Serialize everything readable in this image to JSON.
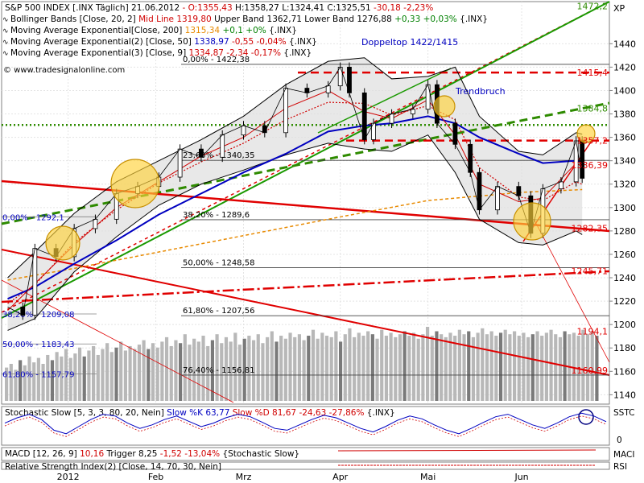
{
  "chart_data": {
    "type": "line",
    "header": {
      "symbol": "S&P 500 INDEX [.INX Täglich]",
      "date": "21.06.2012",
      "open": "O:1355,43",
      "high": "H:1358,27",
      "low": "L:1324,41",
      "close": "C:1325,51",
      "change": "-30,18 -2,23%"
    },
    "legend": [
      {
        "name": "Bollinger Bands [Close, 20, 2]",
        "extra": [
          {
            "text": "Mid Line 1319,80",
            "color": "#d00000"
          },
          {
            "text": "Upper Band 1362,71 Lower Band 1276,88",
            "color": "#000000"
          },
          {
            "text": "+0,33 +0,03%",
            "color": "#008000"
          },
          {
            "text": "{.INX}",
            "color": "#000000"
          }
        ]
      },
      {
        "name": "Moving Average Exponential[Close, 200]",
        "extra": [
          {
            "text": "1315,34",
            "color": "#e88a00"
          },
          {
            "text": "+0,1 +0%",
            "color": "#008000"
          },
          {
            "text": "{.INX}",
            "color": "#000000"
          }
        ]
      },
      {
        "name": "Moving Average Exponential(2) [Close, 50]",
        "extra": [
          {
            "text": "1338,97",
            "color": "#0000c0"
          },
          {
            "text": "-0,55 -0,04%",
            "color": "#d00000"
          },
          {
            "text": "{.INX}",
            "color": "#000000"
          }
        ]
      },
      {
        "name": "Moving Average Exponential(3) [Close, 9]",
        "extra": [
          {
            "text": "1334,87",
            "color": "#d00000"
          },
          {
            "text": "-2,34 -0,17%",
            "color": "#d00000"
          },
          {
            "text": "{.INX}",
            "color": "#000000"
          }
        ]
      }
    ],
    "watermark": "© www.tradesignalonline.com",
    "y_ticks": [
      1140,
      1160,
      1180,
      1200,
      1220,
      1240,
      1260,
      1280,
      1300,
      1320,
      1340,
      1360,
      1380,
      1400,
      1420,
      1440
    ],
    "ylim": [
      1132,
      1476
    ],
    "x_axis": [
      {
        "label": "2012",
        "date": "2012-01-03"
      },
      {
        "label": "Feb",
        "date": "2012-02-01"
      },
      {
        "label": "Mrz",
        "date": "2012-03-01"
      },
      {
        "label": "Apr",
        "date": "2012-04-02"
      },
      {
        "label": "Mai",
        "date": "2012-05-01"
      },
      {
        "label": "Jun",
        "date": "2012-06-01"
      }
    ],
    "xlim": [
      "2011-12-12",
      "2012-06-30"
    ],
    "yaxis_symbol": "XP",
    "annotations": {
      "doppeltop": "Doppeltop 1422/1415",
      "trendbruch": "Trendbruch"
    },
    "fib_levels": [
      {
        "label": "0,00% - 1422,38",
        "value": 1422.38
      },
      {
        "label": "23,60% - 1340,35",
        "value": 1340.35
      },
      {
        "label": "38,20% - 1289,6",
        "value": 1289.6
      },
      {
        "label": "50,00% - 1248,58",
        "value": 1248.58
      },
      {
        "label": "61,80% - 1207,56",
        "value": 1207.56
      },
      {
        "label": "76,40% - 1156,81",
        "value": 1156.81
      }
    ],
    "left_fib_levels": [
      {
        "label": "0,00% - 1292,1",
        "value": 1292.1
      },
      {
        "label": "38,20% - 1209,08",
        "value": 1209.08
      },
      {
        "label": "50,00% - 1183,43",
        "value": 1183.43
      },
      {
        "label": "61,80% - 1157,79",
        "value": 1157.79
      }
    ],
    "horizontal_lines": [
      {
        "label": "1415,4",
        "value": 1415.4,
        "color": "#e00000",
        "style": "dashed"
      },
      {
        "label": "1370,58",
        "value": 1370.58,
        "color": "#2e8b00",
        "style": "dotted"
      },
      {
        "label": "1357,2",
        "value": 1357.2,
        "color": "#e00000",
        "style": "dashed"
      }
    ],
    "right_labels": [
      {
        "text": "1472,2",
        "value": 1472.2,
        "color": "#2e8b00"
      },
      {
        "text": "1415,4",
        "value": 1415.4,
        "color": "#e00000"
      },
      {
        "text": "1384,8",
        "value": 1384.8,
        "color": "#2e8b00"
      },
      {
        "text": "1357,2",
        "value": 1357.2,
        "color": "#e00000"
      },
      {
        "text": "1336,39",
        "value": 1336.39,
        "color": "#e00000"
      },
      {
        "text": "1282,35",
        "value": 1282.35,
        "color": "#e00000"
      },
      {
        "text": "1245,71",
        "value": 1245.71,
        "color": "#e00000"
      },
      {
        "text": "1194,1",
        "value": 1194.1,
        "color": "#e00000"
      },
      {
        "text": "1160,99",
        "value": 1160.99,
        "color": "#e00000"
      }
    ],
    "series": [
      {
        "name": "Close",
        "color": "#000000",
        "x": [
          "2011-12-14",
          "2011-12-19",
          "2011-12-23",
          "2011-12-30",
          "2012-01-05",
          "2012-01-12",
          "2012-01-19",
          "2012-01-26",
          "2012-02-02",
          "2012-02-09",
          "2012-02-16",
          "2012-02-23",
          "2012-03-01",
          "2012-03-08",
          "2012-03-15",
          "2012-03-22",
          "2012-03-29",
          "2012-04-02",
          "2012-04-05",
          "2012-04-10",
          "2012-04-13",
          "2012-04-19",
          "2012-04-26",
          "2012-05-01",
          "2012-05-04",
          "2012-05-10",
          "2012-05-15",
          "2012-05-18",
          "2012-05-24",
          "2012-05-31",
          "2012-06-04",
          "2012-06-08",
          "2012-06-14",
          "2012-06-19",
          "2012-06-21"
        ],
        "values": [
          1215,
          1208,
          1265,
          1258,
          1282,
          1290,
          1312,
          1318,
          1326,
          1350,
          1343,
          1362,
          1370,
          1364,
          1402,
          1398,
          1404,
          1420,
          1398,
          1358,
          1372,
          1380,
          1384,
          1405,
          1372,
          1354,
          1330,
          1298,
          1318,
          1310,
          1278,
          1316,
          1322,
          1357,
          1325
        ]
      },
      {
        "name": "Bollinger Upper",
        "color": "#000000",
        "x": [
          "2011-12-14",
          "2011-12-23",
          "2012-01-05",
          "2012-01-19",
          "2012-02-02",
          "2012-02-16",
          "2012-03-01",
          "2012-03-15",
          "2012-03-29",
          "2012-04-10",
          "2012-04-19",
          "2012-05-01",
          "2012-05-10",
          "2012-05-18",
          "2012-05-31",
          "2012-06-08",
          "2012-06-19",
          "2012-06-21"
        ],
        "values": [
          1240,
          1262,
          1295,
          1322,
          1340,
          1358,
          1378,
          1405,
          1425,
          1428,
          1410,
          1412,
          1420,
          1378,
          1348,
          1345,
          1364,
          1362.71
        ]
      },
      {
        "name": "Bollinger Lower",
        "color": "#000000",
        "x": [
          "2011-12-14",
          "2011-12-23",
          "2012-01-05",
          "2012-01-19",
          "2012-02-02",
          "2012-02-16",
          "2012-03-01",
          "2012-03-15",
          "2012-03-29",
          "2012-04-10",
          "2012-04-19",
          "2012-05-01",
          "2012-05-10",
          "2012-05-18",
          "2012-05-31",
          "2012-06-08",
          "2012-06-19",
          "2012-06-21"
        ],
        "values": [
          1195,
          1205,
          1245,
          1275,
          1302,
          1320,
          1332,
          1345,
          1355,
          1350,
          1348,
          1362,
          1330,
          1290,
          1270,
          1268,
          1280,
          1276.88
        ]
      },
      {
        "name": "Mid Line",
        "color": "#d00000",
        "x": [
          "2011-12-14",
          "2011-12-23",
          "2012-01-05",
          "2012-01-19",
          "2012-02-02",
          "2012-02-16",
          "2012-03-01",
          "2012-03-15",
          "2012-03-29",
          "2012-04-10",
          "2012-04-19",
          "2012-05-01",
          "2012-05-10",
          "2012-05-18",
          "2012-05-31",
          "2012-06-08",
          "2012-06-19",
          "2012-06-21"
        ],
        "values": [
          1218,
          1234,
          1270,
          1298,
          1321,
          1339,
          1355,
          1375,
          1390,
          1389,
          1379,
          1387,
          1375,
          1334,
          1309,
          1306,
          1322,
          1319.8
        ]
      },
      {
        "name": "EMA 200",
        "color": "#e88a00",
        "x": [
          "2011-12-14",
          "2012-01-05",
          "2012-02-02",
          "2012-03-01",
          "2012-04-02",
          "2012-05-01",
          "2012-06-01",
          "2012-06-21"
        ],
        "values": [
          1238,
          1248,
          1262,
          1276,
          1292,
          1306,
          1313,
          1315.34
        ]
      },
      {
        "name": "EMA 50",
        "color": "#0000c0",
        "x": [
          "2011-12-14",
          "2011-12-23",
          "2012-01-05",
          "2012-01-19",
          "2012-02-02",
          "2012-02-16",
          "2012-03-01",
          "2012-03-15",
          "2012-03-29",
          "2012-04-10",
          "2012-04-19",
          "2012-05-01",
          "2012-05-10",
          "2012-05-18",
          "2012-05-31",
          "2012-06-08",
          "2012-06-19",
          "2012-06-21"
        ],
        "values": [
          1222,
          1232,
          1252,
          1272,
          1294,
          1312,
          1330,
          1346,
          1365,
          1370,
          1372,
          1378,
          1372,
          1360,
          1346,
          1338,
          1340,
          1338.97
        ]
      },
      {
        "name": "EMA 9",
        "color": "#d00000",
        "x": [
          "2011-12-14",
          "2011-12-23",
          "2012-01-05",
          "2012-01-19",
          "2012-02-02",
          "2012-02-16",
          "2012-03-01",
          "2012-03-15",
          "2012-03-29",
          "2012-04-10",
          "2012-04-19",
          "2012-05-01",
          "2012-05-10",
          "2012-05-18",
          "2012-05-31",
          "2012-06-08",
          "2012-06-19",
          "2012-06-21"
        ],
        "values": [
          1212,
          1235,
          1268,
          1300,
          1322,
          1344,
          1360,
          1385,
          1400,
          1382,
          1376,
          1392,
          1362,
          1320,
          1305,
          1308,
          1338,
          1334.87
        ]
      }
    ],
    "volume_bars": [
      0.45,
      0.5,
      0.42,
      0.55,
      0.48,
      0.6,
      0.52,
      0.58,
      0.5,
      0.62,
      0.55,
      0.66,
      0.6,
      0.7,
      0.58,
      0.64,
      0.72,
      0.6,
      0.68,
      0.74,
      0.62,
      0.7,
      0.78,
      0.66,
      0.72,
      0.8,
      0.68,
      0.74,
      0.7,
      0.76,
      0.82,
      0.7,
      0.78,
      0.72,
      0.8,
      0.86,
      0.74,
      0.82,
      0.78,
      0.9,
      0.76,
      0.84,
      0.8,
      0.88,
      0.74,
      0.82,
      0.9,
      0.78,
      0.86,
      0.8,
      0.92,
      0.76,
      0.84,
      0.88,
      0.82,
      0.9,
      0.78,
      0.86,
      0.94,
      0.8,
      0.88,
      0.84,
      0.92,
      0.86,
      0.9,
      0.82,
      0.88,
      0.96,
      0.84,
      0.92,
      0.88,
      0.86,
      0.94,
      0.8,
      0.9,
      0.98,
      0.86,
      0.92,
      0.88,
      0.94,
      0.9,
      0.84,
      0.96,
      0.88,
      0.92,
      0.86,
      0.9,
      0.94,
      0.88,
      0.92,
      0.84,
      0.9,
      1.0,
      0.88,
      0.94,
      0.9,
      0.86,
      0.92,
      0.88,
      0.96,
      0.9,
      0.94,
      0.86,
      0.92,
      0.98,
      0.9,
      0.94,
      0.88,
      0.92,
      0.96,
      0.9,
      0.94,
      0.88,
      0.92,
      0.86,
      0.9,
      0.94,
      0.88,
      0.92,
      0.96,
      0.9,
      0.86,
      0.94,
      0.9,
      0.92,
      0.88,
      0.96,
      0.9,
      0.94,
      0.88
    ],
    "indicators": {
      "stochastic": {
        "title": "Stochastic Slow [5, 3, 3, 80, 20, Nein]",
        "k": "Slow %K 63,77",
        "d": "Slow %D 81,67",
        "chg": "-24,63 -27,86%",
        "tail": "{.INX}",
        "axis_label": "SSTC",
        "ticks": [
          "0"
        ],
        "k_values": [
          60,
          75,
          85,
          70,
          40,
          30,
          50,
          70,
          85,
          80,
          60,
          45,
          55,
          70,
          80,
          65,
          50,
          60,
          75,
          85,
          78,
          62,
          45,
          40,
          55,
          70,
          82,
          75,
          60,
          45,
          35,
          50,
          68,
          80,
          72,
          55,
          40,
          30,
          45,
          62,
          78,
          85,
          70,
          55,
          45,
          60,
          78,
          88,
          80,
          64
        ]
      },
      "macd": {
        "title": "MACD [12, 26, 9]",
        "v1": "10,16",
        "v2": "Trigger 8,25",
        "chg": "-1,52 -13,04%",
        "tail": "{Stochastic Slow}",
        "axis_label": "MACI"
      },
      "rsi": {
        "title": "Relative Strength Index(2) [Close, 14, 70, 30, Nein]",
        "axis_label": "RSI"
      }
    }
  }
}
